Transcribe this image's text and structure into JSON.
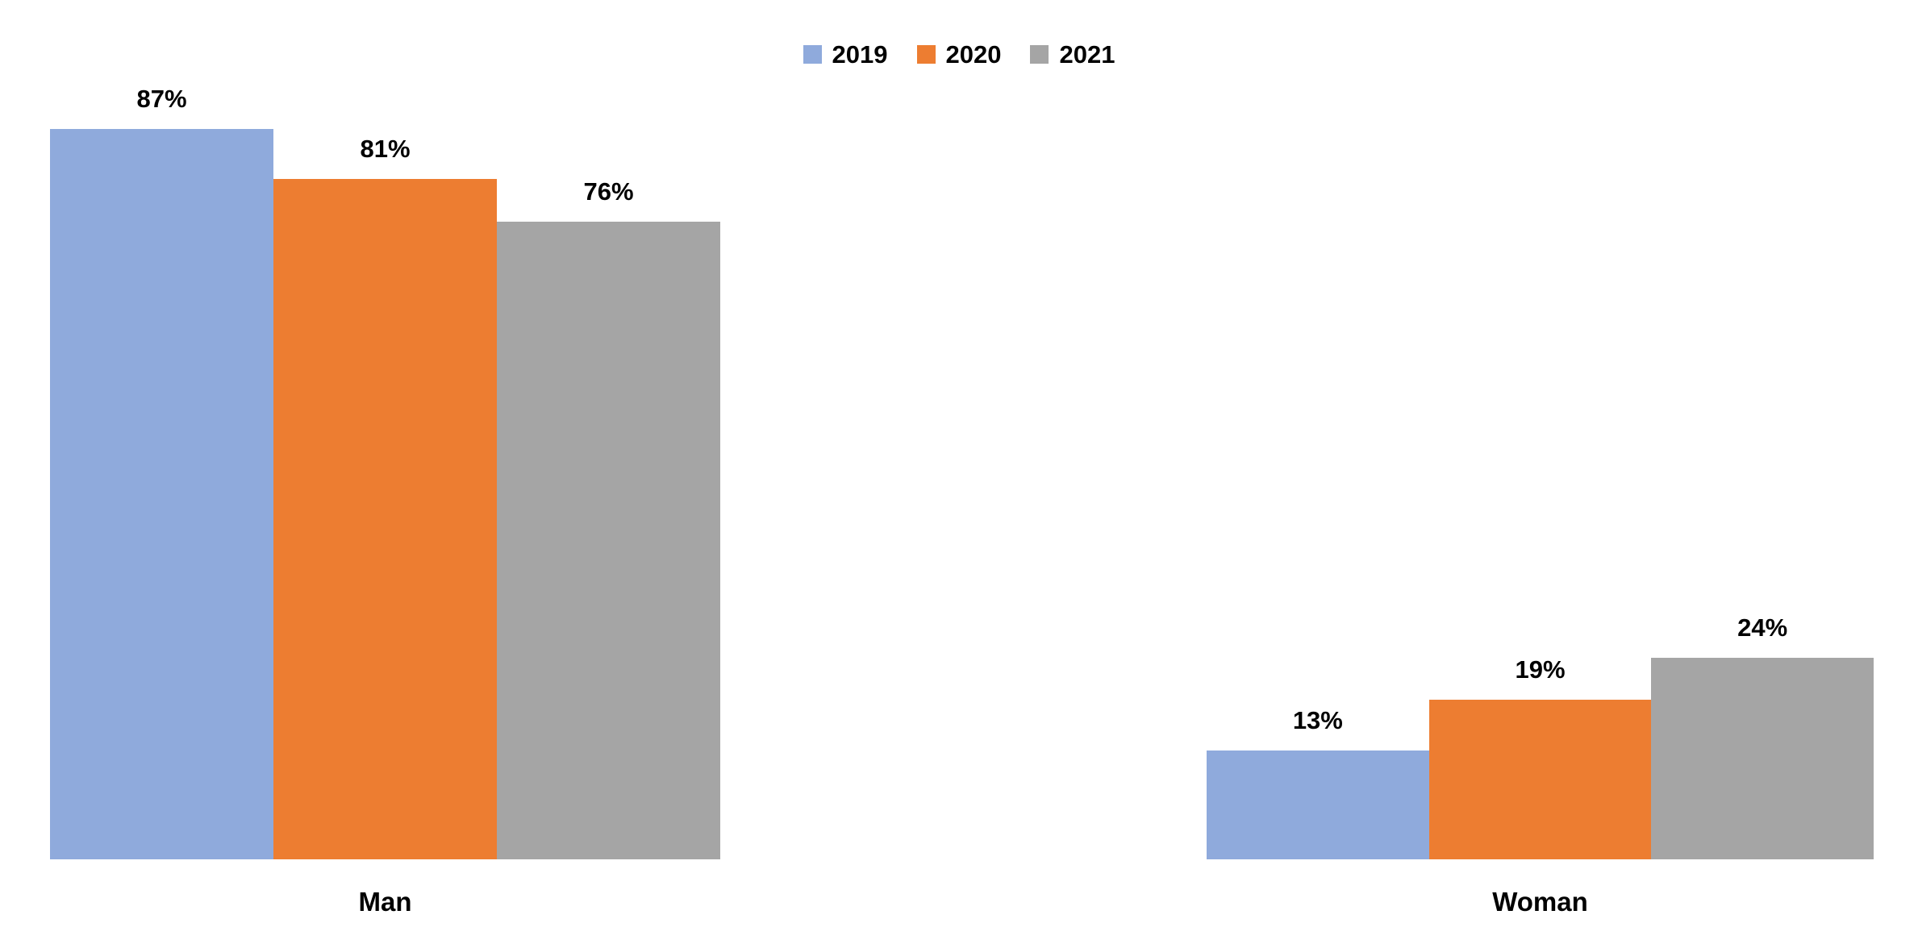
{
  "chart_data": {
    "type": "bar",
    "categories": [
      "Man",
      "Woman"
    ],
    "series": [
      {
        "name": "2019",
        "color": "#8FAADC",
        "values": [
          87,
          13
        ]
      },
      {
        "name": "2020",
        "color": "#ED7D31",
        "values": [
          81,
          19
        ]
      },
      {
        "name": "2021",
        "color": "#A5A5A5",
        "values": [
          76,
          24
        ]
      }
    ],
    "value_suffix": "%",
    "data_labels": {
      "Man": [
        "87%",
        "81%",
        "76%"
      ],
      "Woman": [
        "13%",
        "19%",
        "24%"
      ]
    },
    "title": "",
    "xlabel": "",
    "ylabel": "",
    "ylim": [
      0,
      100
    ],
    "grid": false,
    "axis_lines": false,
    "legend_position": "top-center",
    "text_color": "#000000",
    "background": "#FFFFFF"
  }
}
